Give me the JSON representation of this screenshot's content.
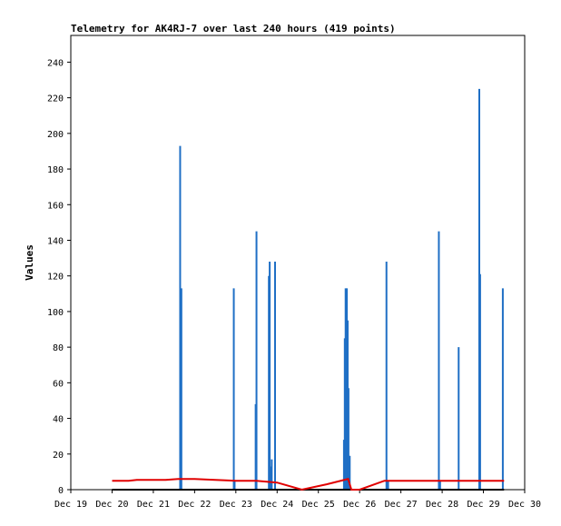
{
  "chart_data": {
    "type": "bar",
    "title": "Telemetry for AK4RJ-7 over last 240 hours (419 points)",
    "xlabel": "",
    "ylabel": "Values",
    "x_tick_labels": [
      "Dec 19",
      "Dec 20",
      "Dec 21",
      "Dec 22",
      "Dec 23",
      "Dec 24",
      "Dec 25",
      "Dec 26",
      "Dec 27",
      "Dec 28",
      "Dec 29",
      "Dec 30"
    ],
    "xlim": [
      0,
      11
    ],
    "ylim": [
      0,
      255
    ],
    "y_ticks": [
      0,
      20,
      40,
      60,
      80,
      100,
      120,
      140,
      160,
      180,
      200,
      220,
      240
    ],
    "grid": false,
    "legend": "none",
    "colors": {
      "spikes": "#1f6fc5",
      "line": "#e00000",
      "baseline": "#000000",
      "frame": "#000000"
    },
    "series": [
      {
        "style": "impulse",
        "points": [
          [
            2.65,
            193
          ],
          [
            2.68,
            113
          ],
          [
            3.95,
            113
          ],
          [
            3.97,
            5
          ],
          [
            4.48,
            48
          ],
          [
            4.5,
            145
          ],
          [
            4.8,
            120
          ],
          [
            4.82,
            128
          ],
          [
            4.84,
            13
          ],
          [
            4.87,
            17
          ],
          [
            4.95,
            128
          ],
          [
            6.62,
            28
          ],
          [
            6.64,
            85
          ],
          [
            6.66,
            113
          ],
          [
            6.69,
            113
          ],
          [
            6.71,
            95
          ],
          [
            6.73,
            57
          ],
          [
            6.76,
            19
          ],
          [
            7.65,
            128
          ],
          [
            7.69,
            5
          ],
          [
            8.92,
            145
          ],
          [
            8.95,
            5
          ],
          [
            9.4,
            80
          ],
          [
            9.9,
            225
          ],
          [
            9.92,
            121
          ],
          [
            10.47,
            113
          ]
        ]
      },
      {
        "style": "line",
        "points": [
          [
            1.0,
            5
          ],
          [
            1.4,
            5
          ],
          [
            1.6,
            5.5
          ],
          [
            2.0,
            5.5
          ],
          [
            2.3,
            5.5
          ],
          [
            2.6,
            6
          ],
          [
            3.0,
            6
          ],
          [
            3.5,
            5.5
          ],
          [
            4.0,
            5
          ],
          [
            4.5,
            5
          ],
          [
            5.0,
            4
          ],
          [
            5.6,
            0
          ],
          [
            6.2,
            3
          ],
          [
            6.72,
            6
          ],
          [
            6.8,
            0
          ],
          [
            7.0,
            0
          ],
          [
            7.6,
            5
          ],
          [
            8.0,
            5
          ],
          [
            8.5,
            5
          ],
          [
            9.0,
            5
          ],
          [
            9.5,
            5
          ],
          [
            10.0,
            5
          ],
          [
            10.5,
            5
          ]
        ]
      }
    ]
  }
}
